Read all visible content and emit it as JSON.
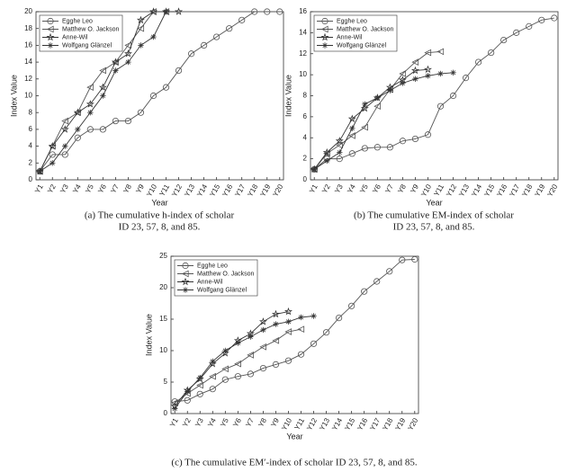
{
  "chart_data": [
    {
      "type": "line",
      "caption": [
        "(a) The cumulative h-index of scholar",
        "ID 23, 57, 8, and 85."
      ],
      "xlabel": "Year",
      "ylabel": "Index Value",
      "categories": [
        "Y1",
        "Y2",
        "Y3",
        "Y4",
        "Y5",
        "Y6",
        "Y7",
        "Y8",
        "Y9",
        "Y10",
        "Y11",
        "Y12",
        "Y13",
        "Y14",
        "Y15",
        "Y16",
        "Y17",
        "Y18",
        "Y19",
        "Y20"
      ],
      "ylim": [
        0,
        20
      ],
      "yticks": [
        0,
        2,
        4,
        6,
        8,
        10,
        12,
        14,
        16,
        18,
        20
      ],
      "legend": "upper-left",
      "series": [
        {
          "name": "Egghe Leo",
          "color": "#555555",
          "marker": "circle",
          "values": [
            1,
            3,
            3,
            5,
            6,
            6,
            7,
            7,
            8,
            10,
            11,
            13,
            15,
            16,
            17,
            18,
            19,
            20,
            20,
            20
          ]
        },
        {
          "name": "Matthew O. Jackson",
          "color": "#555555",
          "marker": "triangle",
          "values": [
            1,
            4,
            7,
            8,
            11,
            13,
            14,
            16,
            18,
            20,
            20,
            null,
            null,
            null,
            null,
            null,
            null,
            null,
            null,
            null
          ]
        },
        {
          "name": "Anne-Wil",
          "color": "#333333",
          "marker": "star",
          "values": [
            1,
            4,
            6,
            8,
            9,
            11,
            14,
            15,
            19,
            20,
            20,
            20,
            null,
            null,
            null,
            null,
            null,
            null,
            null,
            null
          ]
        },
        {
          "name": "Wolfgang Glänzel",
          "color": "#333333",
          "marker": "asterisk",
          "values": [
            1,
            2,
            4,
            6,
            8,
            10,
            13,
            14,
            16,
            17,
            20,
            null,
            null,
            null,
            null,
            null,
            null,
            null,
            null,
            null
          ]
        }
      ]
    },
    {
      "type": "line",
      "caption": [
        "(b) The cumulative EM-index of scholar",
        "ID 23, 57, 8, and 85."
      ],
      "xlabel": "Year",
      "ylabel": "Index Value",
      "categories": [
        "Y1",
        "Y2",
        "Y3",
        "Y4",
        "Y5",
        "Y6",
        "Y7",
        "Y8",
        "Y9",
        "Y10",
        "Y11",
        "Y12",
        "Y13",
        "Y14",
        "Y15",
        "Y16",
        "Y17",
        "Y18",
        "Y19",
        "Y20"
      ],
      "ylim": [
        0,
        16
      ],
      "yticks": [
        0,
        2,
        4,
        6,
        8,
        10,
        12,
        14,
        16
      ],
      "legend": "upper-left",
      "series": [
        {
          "name": "Egghe Leo",
          "color": "#555555",
          "marker": "circle",
          "values": [
            1,
            2,
            2,
            2.5,
            3,
            3.1,
            3.1,
            3.7,
            3.9,
            4.3,
            7,
            8,
            9.7,
            11.2,
            12.1,
            13.3,
            14,
            14.6,
            15.2,
            15.4
          ]
        },
        {
          "name": "Matthew O. Jackson",
          "color": "#555555",
          "marker": "triangle",
          "values": [
            1,
            2.5,
            3.3,
            4.2,
            5,
            7,
            8.6,
            10.1,
            11.2,
            12.1,
            12.2,
            null,
            null,
            null,
            null,
            null,
            null,
            null,
            null,
            null
          ]
        },
        {
          "name": "Anne-Wil",
          "color": "#333333",
          "marker": "star",
          "values": [
            1,
            2.6,
            3.7,
            5.8,
            6.8,
            7.8,
            8.8,
            9.5,
            10.4,
            10.5,
            null,
            null,
            null,
            null,
            null,
            null,
            null,
            null,
            null,
            null
          ]
        },
        {
          "name": "Wolfgang Glänzel",
          "color": "#333333",
          "marker": "asterisk",
          "values": [
            1,
            1.8,
            2.6,
            4.9,
            7.2,
            7.8,
            8.5,
            9.2,
            9.6,
            9.9,
            10.1,
            10.2,
            null,
            null,
            null,
            null,
            null,
            null,
            null,
            null
          ]
        }
      ]
    },
    {
      "type": "line",
      "caption": [
        "(c) The cumulative EM′-index of scholar ID 23, 57, 8, and 85."
      ],
      "xlabel": "Year",
      "ylabel": "Index Value",
      "categories": [
        "Y1",
        "Y2",
        "Y3",
        "Y4",
        "Y5",
        "Y6",
        "Y7",
        "Y8",
        "Y9",
        "Y10",
        "Y11",
        "Y12",
        "Y13",
        "Y14",
        "Y15",
        "Y16",
        "Y17",
        "Y18",
        "Y19",
        "Y20"
      ],
      "ylim": [
        0,
        25
      ],
      "yticks": [
        0,
        5,
        10,
        15,
        20,
        25
      ],
      "legend": "upper-left",
      "series": [
        {
          "name": "Egghe Leo",
          "color": "#555555",
          "marker": "circle",
          "values": [
            1.9,
            2.1,
            3.1,
            3.9,
            5.4,
            5.9,
            6.3,
            7.2,
            7.8,
            8.4,
            9.4,
            11.1,
            12.9,
            15.2,
            17.1,
            19.4,
            21,
            22.6,
            24.4,
            24.5
          ]
        },
        {
          "name": "Matthew O. Jackson",
          "color": "#555555",
          "marker": "triangle",
          "values": [
            1.7,
            3.2,
            4.5,
            5.9,
            7.1,
            7.9,
            9.3,
            10.6,
            11.6,
            13,
            13.4,
            null,
            null,
            null,
            null,
            null,
            null,
            null,
            null,
            null
          ]
        },
        {
          "name": "Anne-Wil",
          "color": "#333333",
          "marker": "star",
          "values": [
            1.2,
            3.7,
            5.5,
            7.9,
            9.6,
            11.6,
            12.7,
            14.6,
            15.8,
            16.2,
            null,
            null,
            null,
            null,
            null,
            null,
            null,
            null,
            null,
            null
          ]
        },
        {
          "name": "Wolfgang Glänzel",
          "color": "#333333",
          "marker": "asterisk",
          "values": [
            0.8,
            3.5,
            5.7,
            8.3,
            10,
            11.2,
            12.2,
            13.3,
            14.2,
            14.6,
            15.3,
            15.5,
            null,
            null,
            null,
            null,
            null,
            null,
            null,
            null
          ]
        }
      ]
    }
  ]
}
